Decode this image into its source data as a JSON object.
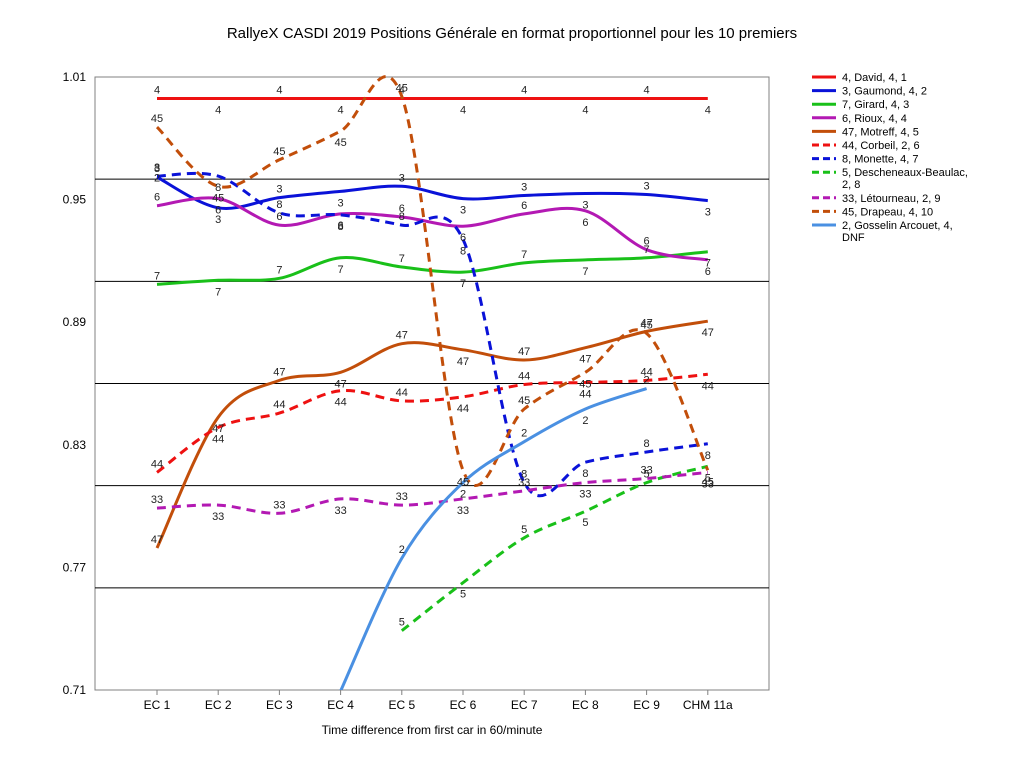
{
  "chart_data": {
    "type": "line",
    "title": "RallyeX CASDI 2019  Positions Générale en format proportionnel pour les 10 premiers",
    "xlabel": "Time difference from first car in 60/minute",
    "ylabel": "",
    "categories": [
      "EC 1",
      "EC 2",
      "EC 3",
      "EC 4",
      "EC 5",
      "EC 6",
      "EC 7",
      "EC 8",
      "EC 9",
      "CHM 11a"
    ],
    "y_ticks": [
      "1.01",
      "0.95",
      "0.89",
      "0.83",
      "0.77",
      "0.71"
    ],
    "ylim": [
      0.71,
      1.01
    ],
    "grid": "horizontal",
    "legend_position": "right",
    "series": [
      {
        "name": "4, David, 4, 1",
        "label": "4",
        "color": "#ee1111",
        "dashed": false,
        "values": [
          0.9995,
          0.9995,
          0.9995,
          0.9995,
          0.9995,
          0.9995,
          0.9995,
          0.9995,
          0.9995,
          0.9995
        ]
      },
      {
        "name": "3, Gaumond, 4, 2",
        "label": "3",
        "color": "#0a12d8",
        "dashed": false,
        "values": [
          0.961,
          0.946,
          0.951,
          0.954,
          0.9565,
          0.9505,
          0.952,
          0.953,
          0.9525,
          0.9495
        ]
      },
      {
        "name": "7, Girard, 4, 3",
        "label": "7",
        "color": "#19c019",
        "dashed": false,
        "values": [
          0.9085,
          0.9105,
          0.9115,
          0.9215,
          0.917,
          0.9145,
          0.919,
          0.9205,
          0.9215,
          0.9245
        ]
      },
      {
        "name": "6, Rioux, 4, 4",
        "label": "6",
        "color": "#b319b3",
        "dashed": false,
        "values": [
          0.947,
          0.9505,
          0.9375,
          0.943,
          0.9415,
          0.937,
          0.943,
          0.9445,
          0.9255,
          0.9205
        ]
      },
      {
        "name": "47, Motreff, 4, 5",
        "label": "47",
        "color": "#c24e0a",
        "dashed": false,
        "values": [
          0.7795,
          0.8435,
          0.8615,
          0.8655,
          0.8795,
          0.8765,
          0.8715,
          0.8775,
          0.8855,
          0.8905
        ]
      },
      {
        "name": "44, Corbeil, 2, 6",
        "label": "44",
        "color": "#ee1111",
        "dashed": true,
        "values": [
          0.8165,
          0.8385,
          0.8455,
          0.8565,
          0.8515,
          0.8535,
          0.8595,
          0.8605,
          0.8615,
          0.8645
        ]
      },
      {
        "name": "8, Monette, 4, 7",
        "label": "8",
        "color": "#0a12d8",
        "dashed": true,
        "values": [
          0.9615,
          0.9615,
          0.9435,
          0.9425,
          0.9375,
          0.9305,
          0.8115,
          0.8215,
          0.8265,
          0.8305
        ]
      },
      {
        "name": "5, Descheneaux-Beaulac, 2, 8",
        "label": "5",
        "color": "#19c019",
        "dashed": true,
        "values": [
          null,
          null,
          null,
          null,
          0.739,
          0.7625,
          0.7845,
          0.7975,
          0.8115,
          0.8195
        ]
      },
      {
        "name": "33, Létourneau, 2, 9",
        "label": "33",
        "color": "#b319b3",
        "dashed": true,
        "values": [
          0.799,
          0.8005,
          0.7965,
          0.8035,
          0.8005,
          0.8035,
          0.8075,
          0.8115,
          0.8135,
          0.8165
        ]
      },
      {
        "name": "45, Drapeau, 4, 10",
        "label": "45",
        "color": "#c24e0a",
        "dashed": true,
        "values": [
          0.9855,
          0.9565,
          0.9695,
          0.9835,
          1.0005,
          0.8175,
          0.8475,
          0.8655,
          0.8845,
          0.8175
        ]
      },
      {
        "name": "2, Gosselin Arcouet, 4, DNF",
        "label": "2",
        "color": "#4a90e2",
        "dashed": false,
        "values": [
          0.9565,
          null,
          null,
          0.7095,
          0.7745,
          0.8115,
          0.8315,
          0.8475,
          0.8575,
          null
        ]
      }
    ]
  }
}
